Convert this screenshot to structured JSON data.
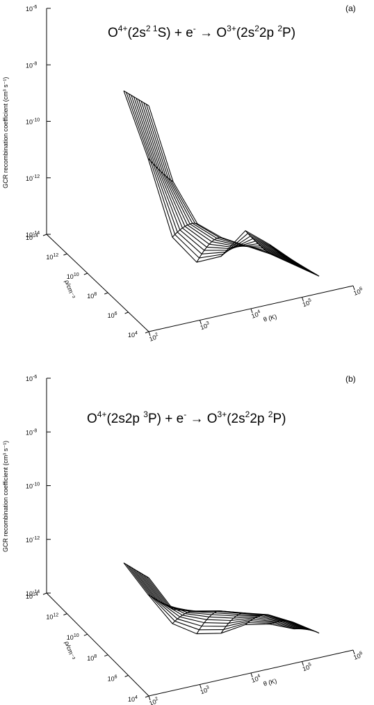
{
  "panels": [
    {
      "label": "(a)",
      "title": {
        "parts": [
          {
            "t": "O"
          },
          {
            "t": "4+",
            "sup": true
          },
          {
            "t": "(2s"
          },
          {
            "t": "2 1",
            "sup": true
          },
          {
            "t": "S) + e"
          },
          {
            "t": "-",
            "sup": true
          },
          {
            "t": " → O"
          },
          {
            "t": "3+",
            "sup": true
          },
          {
            "t": "(2s"
          },
          {
            "t": "2",
            "sup": true
          },
          {
            "t": "2p "
          },
          {
            "t": "2",
            "sup": true
          },
          {
            "t": "P)"
          }
        ]
      },
      "z_axis_label": "GCR recombination coefficient (cm³ s⁻¹)",
      "density_axis_label": "ρ/cm⁻³",
      "temperature_axis_label": "θ (K)"
    },
    {
      "label": "(b)",
      "title": {
        "parts": [
          {
            "t": "O"
          },
          {
            "t": "4+",
            "sup": true
          },
          {
            "t": "(2s2p "
          },
          {
            "t": "3",
            "sup": true
          },
          {
            "t": "P) + e"
          },
          {
            "t": "-",
            "sup": true
          },
          {
            "t": " → O"
          },
          {
            "t": "3+",
            "sup": true
          },
          {
            "t": "(2s"
          },
          {
            "t": "2",
            "sup": true
          },
          {
            "t": "2p "
          },
          {
            "t": "2",
            "sup": true
          },
          {
            "t": "P)"
          }
        ]
      },
      "z_axis_label": "GCR recombination coefficient (cm³ s⁻¹)",
      "density_axis_label": "ρ/cm⁻³",
      "temperature_axis_label": "θ (K)"
    }
  ],
  "chart_data": [
    {
      "type": "surface",
      "title": "O4+(2s2 1S) + e- → O3+(2s22p 2P)",
      "x_label": "θ (K)",
      "x_scale": "log",
      "x_ticks": [
        "10^2",
        "10^3",
        "10^4",
        "10^5",
        "10^6"
      ],
      "y_label": "ρ/cm⁻³",
      "y_scale": "log",
      "y_ticks": [
        "10^4",
        "10^6",
        "10^8",
        "10^10",
        "10^12",
        "10^14"
      ],
      "z_label": "GCR recombination coefficient (cm3 s-1)",
      "z_scale": "log",
      "z_ticks": [
        "10^-6",
        "10^-8",
        "10^-10",
        "10^-12",
        "10^-14"
      ],
      "log_theta": [
        2.0,
        2.5,
        3.0,
        3.5,
        4.0,
        4.5,
        5.0,
        5.5
      ],
      "log_density": [
        4,
        5,
        6,
        7,
        8,
        9,
        10,
        11,
        12,
        13,
        14
      ],
      "log_alpha_low_density": [
        -6.0,
        -8.9,
        -10.6,
        -11.3,
        -11.8,
        -12.3,
        -12.9,
        -13.5
      ],
      "log_alpha_high_density": [
        -6.0,
        -8.6,
        -11.6,
        -12.7,
        -12.7,
        -12.0,
        -12.7,
        -13.5
      ],
      "color": "#000000"
    },
    {
      "type": "surface",
      "title": "O4+(2s2p 3P) + e- → O3+(2s22p 2P)",
      "x_label": "θ (K)",
      "x_scale": "log",
      "x_ticks": [
        "10^2",
        "10^3",
        "10^4",
        "10^5",
        "10^6"
      ],
      "y_label": "ρ/cm⁻³",
      "y_scale": "log",
      "y_ticks": [
        "10^4",
        "10^6",
        "10^8",
        "10^10",
        "10^12",
        "10^14"
      ],
      "z_label": "GCR recombination coefficient (cm3 s-1)",
      "z_scale": "log",
      "z_ticks": [
        "10^-6",
        "10^-8",
        "10^-10",
        "10^-12",
        "10^-14"
      ],
      "log_theta": [
        2.0,
        2.5,
        3.0,
        3.5,
        4.0,
        4.5,
        5.0,
        5.5
      ],
      "log_density": [
        4,
        5,
        6,
        7,
        8,
        9,
        10,
        11,
        12,
        13,
        14
      ],
      "log_alpha_low_density": [
        -9.6,
        -11.0,
        -11.3,
        -11.5,
        -11.8,
        -12.1,
        -12.6,
        -13.2
      ],
      "log_alpha_high_density": [
        -9.6,
        -11.0,
        -12.3,
        -12.9,
        -13.1,
        -13.0,
        -13.2,
        -13.6
      ],
      "color": "#000000"
    }
  ]
}
